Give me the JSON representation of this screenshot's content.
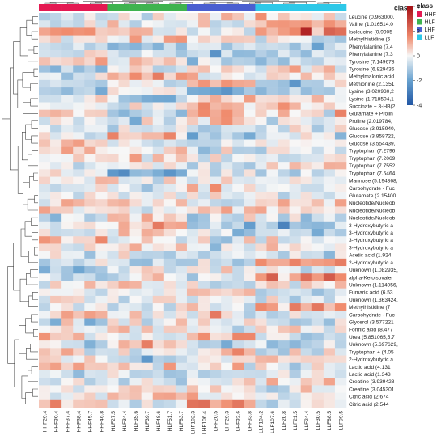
{
  "chart_data": {
    "type": "heatmap",
    "title": "",
    "xlabel": "",
    "ylabel": "",
    "columns": [
      "HHF29.4",
      "HHF30.4",
      "HHF37.4",
      "HHF38.4",
      "HHF45.7",
      "HHF46.8",
      "HLF27.5",
      "HLF34.4",
      "HLF35.6",
      "HLF39.7",
      "HLF48.6",
      "HLF51.7",
      "HLF83.7",
      "LHF102.3",
      "LHF106.4",
      "LHF20.5",
      "LHF29.3",
      "LHF32.6",
      "LHF33.8",
      "LLF104.2",
      "LLF107.6",
      "LLF20.8",
      "LLF21.5",
      "LLF24.4",
      "LLF30.5",
      "LLF88.5",
      "LLF99.5"
    ],
    "column_classes": [
      "HHF",
      "HHF",
      "HHF",
      "HHF",
      "HHF",
      "HHF",
      "HLF",
      "HLF",
      "HLF",
      "HLF",
      "HLF",
      "HLF",
      "HLF",
      "LHF",
      "LHF",
      "LHF",
      "LHF",
      "LHF",
      "LHF",
      "LLF",
      "LLF",
      "LLF",
      "LLF",
      "LLF",
      "LLF",
      "LLF",
      "LLF"
    ],
    "rows": [
      "Leucine (0.963000,",
      "Valine (1.016514.0",
      "Isoleucine (0.9905",
      "Methylhistidine (6",
      "Phenylalanine (7.4",
      "Phenylalanine (7.3",
      "Tyrosine (7.149678",
      "Tyrosine (6.829436",
      "Methylmalonic acid",
      "Methionine (2.1351",
      "Lysine (3.020930,2",
      "Lysine (1.718504,1",
      "Succinate + 3-HB(2",
      "Glutamate + Prolin",
      "Proline (2.019784,",
      "Glucose (3.915940,",
      "Glucose (3.858722,",
      "Glucose (3.554439,",
      "Tryptophan (7.2796",
      "Tryptophan (7.2069",
      "Tryptophan (7.7552",
      "Tryptophan (7.5464",
      "Mannose (5.194868,",
      "Carbohydrate - Fuc",
      "Glutamate (2.15400",
      "Nucleotide/Nucleob",
      "Nucleotide/Nucleob",
      "Nucleotide/Nucleob",
      "3-Hydroxybutyric a",
      "3-Hydroxybutyric a",
      "3-Hydroxybutyric a",
      "3-Hydroxybutyric a",
      "Acetic acid (1.924",
      "2-Hydroxybutyric a",
      "Unknown (1.082935,",
      "alpha-Ketoisovaler",
      "Unknown (1.114056,",
      "Fumaric acid (6.53",
      "Unknown (1.363424,",
      "Methylhistidine (7",
      "Carbohydrate - Fuc",
      "Glycerol (3.577221",
      "Formic acid (8.477",
      "Urea (5.851065,5.7",
      "Unknown (5.697629,",
      "Tryptophan + (4.05",
      "2-Hydroxybutyric a",
      "Lactic acid (4.131",
      "Lactic acid (1.343",
      "Creatine (3.939428",
      "Creatine (3.045301",
      "Citric acid (2.674",
      "Citric acid (2.544"
    ],
    "color_scale": {
      "min": -4,
      "max": 4,
      "ticks": [
        "4",
        "2",
        "0",
        "-2",
        "-4"
      ],
      "colors": [
        "#2a62ae",
        "#6fa2d3",
        "#f7f7f7",
        "#f0896f",
        "#a50f15"
      ]
    },
    "legend": {
      "title": "class",
      "placement": "top-right",
      "items": [
        {
          "label": "HHF",
          "color": "#e41a52"
        },
        {
          "label": "HLF",
          "color": "#3fb34f"
        },
        {
          "label": "LHF",
          "color": "#4a5fd0"
        },
        {
          "label": "LLF",
          "color": "#2ec8e8"
        }
      ]
    },
    "seed": 20240617
  }
}
